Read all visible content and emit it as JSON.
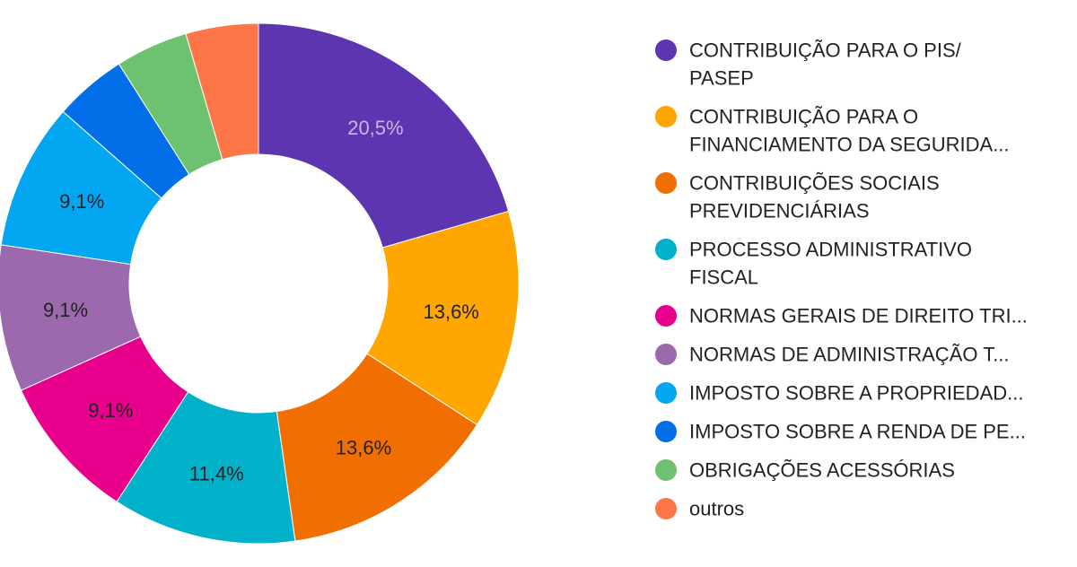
{
  "chart_data": {
    "type": "pie",
    "donut": true,
    "title": "",
    "legend_position": "right",
    "categories": [
      "CONTRIBUIÇÃO PARA O PIS/ PASEP",
      "CONTRIBUIÇÃO PARA O FINANCIAMENTO DA SEGURIDA...",
      "CONTRIBUIÇÕES SOCIAIS PREVIDENCIÁRIAS",
      "PROCESSO ADMINISTRATIVO FISCAL",
      "NORMAS GERAIS DE DIREITO TRI...",
      "NORMAS DE ADMINISTRAÇÃO T...",
      "IMPOSTO SOBRE A PROPRIEDAD...",
      "IMPOSTO SOBRE A RENDA DE PE...",
      "OBRIGAÇÕES ACESSÓRIAS",
      "outros"
    ],
    "legend_lines": [
      [
        "CONTRIBUIÇÃO PARA O PIS/",
        "PASEP"
      ],
      [
        "CONTRIBUIÇÃO PARA O",
        "FINANCIAMENTO DA SEGURIDA..."
      ],
      [
        "CONTRIBUIÇÕES SOCIAIS",
        "PREVIDENCIÁRIAS"
      ],
      [
        "PROCESSO ADMINISTRATIVO",
        "FISCAL"
      ],
      [
        "NORMAS GERAIS DE DIREITO TRI..."
      ],
      [
        "NORMAS DE ADMINISTRAÇÃO T..."
      ],
      [
        "IMPOSTO SOBRE A PROPRIEDAD..."
      ],
      [
        "IMPOSTO SOBRE A RENDA DE PE..."
      ],
      [
        "OBRIGAÇÕES ACESSÓRIAS"
      ],
      [
        "outros"
      ]
    ],
    "values": [
      20.5,
      13.6,
      13.6,
      11.4,
      9.1,
      9.1,
      9.1,
      4.5,
      4.5,
      4.5
    ],
    "data_labels": [
      "20,5%",
      "13,6%",
      "13,6%",
      "11,4%",
      "9,1%",
      "9,1%",
      "9,1%",
      "",
      "",
      ""
    ],
    "colors": [
      "#5e35b1",
      "#ffa600",
      "#f16f00",
      "#00b1c9",
      "#e8008c",
      "#9c69ae",
      "#03a6f1",
      "#026ee8",
      "#6dc16f",
      "#fe7647"
    ],
    "label_colors": [
      "#c6b9e4",
      "#222222",
      "#222222",
      "#222222",
      "#222222",
      "#222222",
      "#222222",
      "#222222",
      "#222222",
      "#222222"
    ]
  }
}
